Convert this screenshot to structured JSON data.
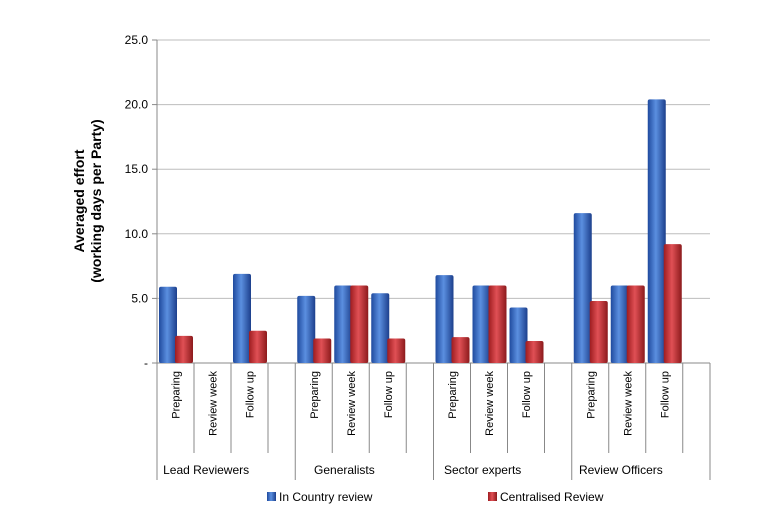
{
  "chart_data": {
    "type": "bar",
    "ylabel_lines": [
      "Averaged effort",
      "(working days per Party)"
    ],
    "ylim": [
      0,
      25
    ],
    "yticks": [
      "-",
      "5.0",
      "10.0",
      "15.0",
      "20.0",
      "25.0"
    ],
    "grid": true,
    "legend_position": "bottom",
    "groups": [
      {
        "name": "Lead Reviewers",
        "categories": [
          "Preparing",
          "Review week",
          "Follow up"
        ]
      },
      {
        "name": "Generalists",
        "categories": [
          "Preparing",
          "Review week",
          "Follow up"
        ]
      },
      {
        "name": "Sector experts",
        "categories": [
          "Preparing",
          "Review week",
          "Follow up"
        ]
      },
      {
        "name": "Review Officers",
        "categories": [
          "Preparing",
          "Review week",
          "Follow up"
        ]
      }
    ],
    "series": [
      {
        "name": "In Country review",
        "color": "#2e5cb8",
        "values": [
          5.9,
          0,
          6.9,
          5.2,
          6.0,
          5.4,
          6.8,
          6.0,
          4.3,
          11.6,
          6.0,
          20.4
        ]
      },
      {
        "name": "Centralised Review",
        "color": "#c0282b",
        "values": [
          2.1,
          0,
          2.5,
          1.9,
          6.0,
          1.9,
          2.0,
          6.0,
          1.7,
          4.8,
          6.0,
          9.2
        ]
      }
    ]
  }
}
